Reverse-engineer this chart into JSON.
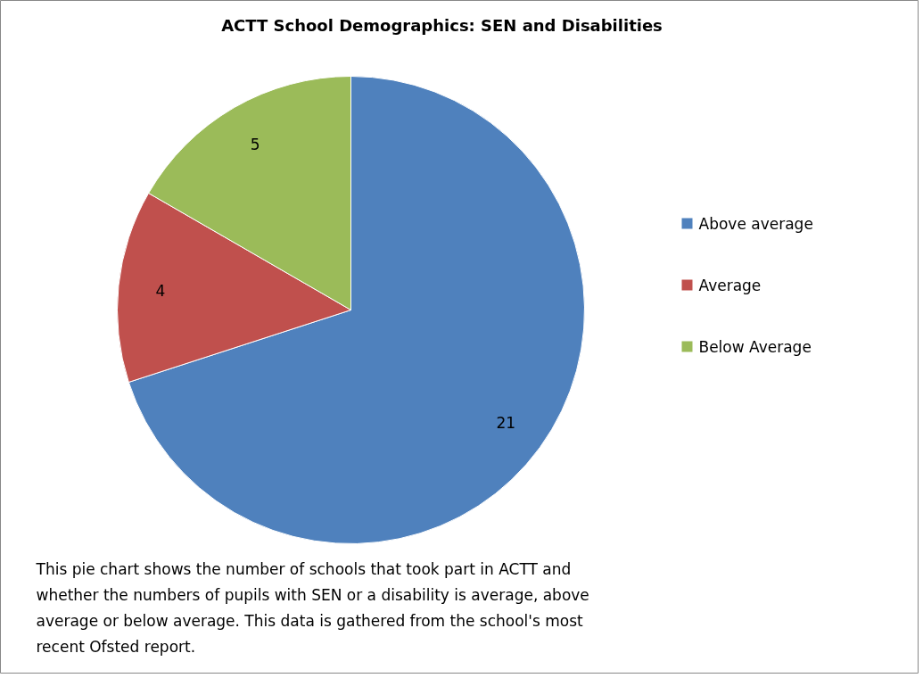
{
  "chart_data": {
    "type": "pie",
    "title": "ACTT School Demographics: SEN and Disabilities",
    "categories": [
      "Above average",
      "Average",
      "Below Average"
    ],
    "values": [
      21,
      4,
      5
    ],
    "colors": [
      "#4f81bd",
      "#c0504d",
      "#9bbb59"
    ],
    "data_labels": true,
    "legend": "right",
    "annotations": [
      "This pie chart shows the number of schools that took part in ACTT and whether the numbers of pupils with SEN or a disability is average, above average or below average. This data is gathered from the school's most recent  Ofsted report."
    ]
  }
}
